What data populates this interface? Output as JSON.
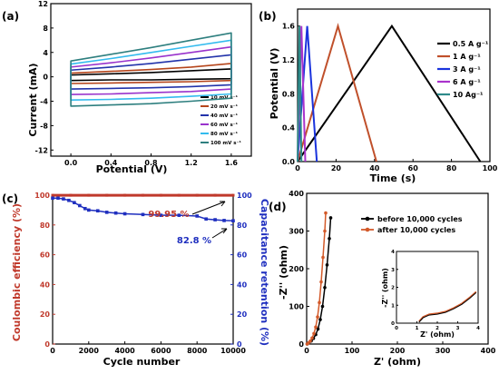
{
  "chart_data": [
    {
      "panel": "(a)",
      "type": "line",
      "xlabel": "Potential (V)",
      "ylabel": "Current (mA)",
      "xlim": [
        -0.2,
        1.8
      ],
      "ylim": [
        -13,
        12
      ],
      "xticks": [
        "0.0",
        "0.4",
        "0.8",
        "1.2",
        "1.6"
      ],
      "yticks": [
        "-12",
        "-8",
        "-4",
        "0",
        "4",
        "8",
        "12"
      ],
      "legend_position": "right",
      "series": [
        {
          "name": "10 mV s⁻¹",
          "color": "#000000",
          "x_range": [
            0.0,
            1.6
          ],
          "upper": [
            0.3,
            0.5,
            0.7,
            1.0,
            1.3
          ],
          "lower": [
            -0.6,
            -0.5,
            -0.5,
            -0.4,
            -0.3
          ]
        },
        {
          "name": "20 mV s⁻¹",
          "color": "#b5451b",
          "x_range": [
            0.0,
            1.6
          ],
          "upper": [
            0.6,
            0.9,
            1.2,
            1.6,
            2.2
          ],
          "lower": [
            -1.1,
            -1.0,
            -0.9,
            -0.8,
            -0.6
          ]
        },
        {
          "name": "40 mV s⁻¹",
          "color": "#2233aa",
          "x_range": [
            0.0,
            1.6
          ],
          "upper": [
            1.1,
            1.6,
            2.2,
            2.9,
            3.6
          ],
          "lower": [
            -2.0,
            -1.9,
            -1.8,
            -1.6,
            -1.3
          ]
        },
        {
          "name": "60 mV s⁻¹",
          "color": "#9933cc",
          "x_range": [
            0.0,
            1.6
          ],
          "upper": [
            1.6,
            2.3,
            3.1,
            4.0,
            4.9
          ],
          "lower": [
            -2.9,
            -2.8,
            -2.6,
            -2.4,
            -2.0
          ]
        },
        {
          "name": "80 mV s⁻¹",
          "color": "#33bbee",
          "x_range": [
            0.0,
            1.6
          ],
          "upper": [
            2.1,
            3.0,
            4.0,
            5.0,
            6.0
          ],
          "lower": [
            -3.8,
            -3.7,
            -3.5,
            -3.2,
            -2.8
          ]
        },
        {
          "name": "100 mV s⁻¹",
          "color": "#2e7f7f",
          "x_range": [
            0.0,
            1.6
          ],
          "upper": [
            2.6,
            3.7,
            4.8,
            6.0,
            7.2
          ],
          "lower": [
            -4.8,
            -4.6,
            -4.4,
            -4.0,
            -3.5
          ]
        }
      ]
    },
    {
      "panel": "(b)",
      "type": "line",
      "xlabel": "Time (s)",
      "ylabel": "Potential (V)",
      "xlim": [
        0,
        100
      ],
      "ylim": [
        0,
        1.8
      ],
      "xticks": [
        "0",
        "20",
        "40",
        "60",
        "80",
        "100"
      ],
      "yticks": [
        "0.0",
        "0.4",
        "0.8",
        "1.2",
        "1.6"
      ],
      "legend_position": "right",
      "series": [
        {
          "name": "0.5 A g⁻¹",
          "color": "#000000",
          "x": [
            0,
            49,
            95
          ],
          "y": [
            0,
            1.6,
            0
          ]
        },
        {
          "name": "1 A g⁻¹",
          "color": "#c0502b",
          "x": [
            0,
            21,
            41
          ],
          "y": [
            0,
            1.6,
            0
          ]
        },
        {
          "name": "3 A g⁻¹",
          "color": "#1a33dd",
          "x": [
            0,
            5,
            10
          ],
          "y": [
            0,
            1.6,
            0
          ]
        },
        {
          "name": "6 A g⁻¹",
          "color": "#aa33cc",
          "x": [
            0,
            2,
            4
          ],
          "y": [
            0,
            1.6,
            0
          ]
        },
        {
          "name": "10 Ag⁻¹",
          "color": "#2e8a8a",
          "x": [
            0,
            1,
            2
          ],
          "y": [
            0,
            1.6,
            0
          ]
        }
      ]
    },
    {
      "panel": "(c)",
      "type": "scatter",
      "xlabel": "Cycle number",
      "ylabel_left": "Coulombic efficiency (%)",
      "ylabel_right": "Capacitance retention (%)",
      "xlim": [
        0,
        10000
      ],
      "ylim": [
        0,
        100
      ],
      "xticks": [
        "0",
        "2000",
        "4000",
        "6000",
        "8000",
        "10000"
      ],
      "yticks_left": [
        "0",
        "20",
        "40",
        "60",
        "80",
        "100"
      ],
      "yticks_right": [
        "0",
        "20",
        "40",
        "60",
        "80",
        "100"
      ],
      "annotations": [
        "99.95 %",
        "82.8 %"
      ],
      "series": [
        {
          "name": "Coulombic efficiency",
          "color": "#c0392b",
          "x": [
            0,
            1000,
            2000,
            3000,
            4000,
            5000,
            6000,
            7000,
            8000,
            9000,
            10000
          ],
          "y": [
            99.95,
            99.95,
            99.95,
            99.95,
            99.95,
            99.95,
            99.95,
            99.95,
            99.95,
            99.95,
            99.95
          ]
        },
        {
          "name": "Capacitance retention",
          "color": "#1f2fbf",
          "x": [
            0,
            300,
            600,
            900,
            1200,
            1500,
            1800,
            2000,
            2500,
            3000,
            3500,
            4000,
            5000,
            6000,
            7000,
            8000,
            8500,
            9000,
            9500,
            10000
          ],
          "y": [
            98,
            98,
            97.5,
            96.5,
            95,
            93,
            91,
            90,
            89.5,
            88.5,
            88,
            87.5,
            87,
            86.5,
            86.5,
            86,
            84,
            83.5,
            83,
            82.8
          ]
        }
      ]
    },
    {
      "panel": "(d)",
      "type": "scatter",
      "xlabel": "Z' (ohm)",
      "ylabel": "-Z'' (ohm)",
      "xlim": [
        0,
        400
      ],
      "ylim": [
        0,
        400
      ],
      "xticks": [
        "0",
        "100",
        "200",
        "300",
        "400"
      ],
      "yticks": [
        "0",
        "100",
        "200",
        "300",
        "400"
      ],
      "legend_position": "top-right",
      "series": [
        {
          "name": "before 10,000 cycles",
          "color": "#000000",
          "x": [
            1.2,
            5,
            10,
            15,
            20,
            25,
            30,
            35,
            40,
            45,
            50,
            53
          ],
          "y": [
            0,
            3,
            8,
            15,
            25,
            40,
            65,
            100,
            150,
            210,
            280,
            335
          ]
        },
        {
          "name": "after 10,000 cycles",
          "color": "#d35a2a",
          "x": [
            1.0,
            4,
            8,
            12,
            16,
            20,
            24,
            28,
            32,
            36,
            40,
            42
          ],
          "y": [
            0,
            3,
            8,
            16,
            28,
            45,
            72,
            110,
            165,
            230,
            300,
            348
          ]
        }
      ],
      "inset": {
        "xlabel": "Z' (ohm)",
        "ylabel": "-Z'' (ohm)",
        "xlim": [
          0,
          4
        ],
        "ylim": [
          0,
          4
        ],
        "xticks": [
          "0",
          "1",
          "2",
          "3",
          "4"
        ],
        "yticks": [
          "0",
          "1",
          "2",
          "3",
          "4"
        ],
        "x": [
          1.1,
          1.3,
          1.6,
          2.0,
          2.4,
          2.8,
          3.2,
          3.6,
          3.9
        ],
        "y": [
          0.1,
          0.35,
          0.5,
          0.55,
          0.65,
          0.85,
          1.1,
          1.45,
          1.75
        ]
      }
    }
  ]
}
